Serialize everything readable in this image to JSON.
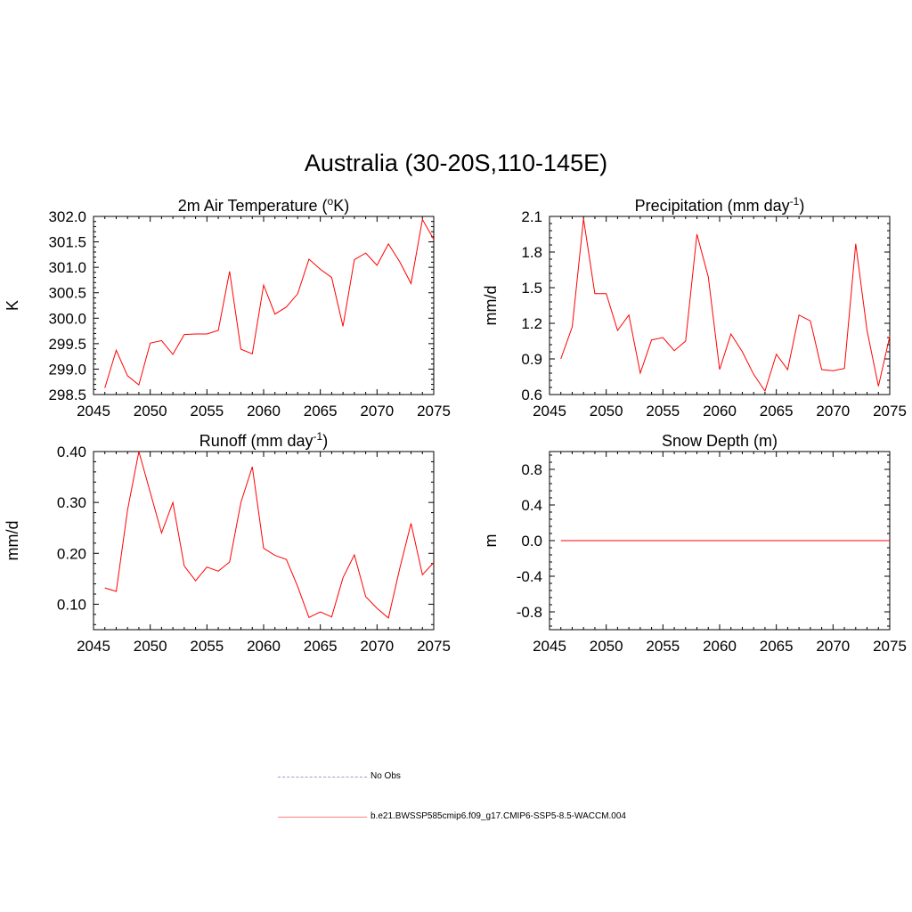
{
  "page": {
    "title": "Australia (30-20S,110-145E)"
  },
  "chart_data": [
    {
      "type": "line",
      "title": "2m Air Temperature (°K)",
      "title_base": "2m Air Temperature (",
      "title_sup": "o",
      "title_tail": "K)",
      "ylabel": "K",
      "xlim": [
        2045,
        2075
      ],
      "ylim": [
        298.5,
        302.0
      ],
      "xticks": [
        2045,
        2050,
        2055,
        2060,
        2065,
        2070,
        2075
      ],
      "yticks": [
        "298.5",
        "299.0",
        "299.5",
        "300.0",
        "300.5",
        "301.0",
        "301.5",
        "302.0"
      ],
      "series": [
        {
          "color": "#ff0000",
          "x": [
            2046,
            2047,
            2048,
            2049,
            2050,
            2051,
            2052,
            2053,
            2054,
            2055,
            2056,
            2057,
            2058,
            2059,
            2060,
            2061,
            2062,
            2063,
            2064,
            2065,
            2066,
            2067,
            2068,
            2069,
            2070,
            2071,
            2072,
            2073,
            2074,
            2075
          ],
          "y": [
            298.63,
            299.37,
            298.87,
            298.69,
            299.51,
            299.56,
            299.29,
            299.68,
            299.69,
            299.69,
            299.76,
            300.92,
            299.39,
            299.3,
            300.65,
            300.08,
            300.22,
            300.48,
            301.16,
            300.96,
            300.8,
            299.84,
            301.15,
            301.28,
            301.04,
            301.46,
            301.11,
            300.68,
            301.94,
            301.55
          ]
        }
      ]
    },
    {
      "type": "line",
      "title": "Precipitation (mm day-1)",
      "title_base": "Precipitation (mm day",
      "title_sup": "-1",
      "title_tail": ")",
      "ylabel": "mm/d",
      "xlim": [
        2045,
        2075
      ],
      "ylim": [
        0.6,
        2.1
      ],
      "xticks": [
        2045,
        2050,
        2055,
        2060,
        2065,
        2070,
        2075
      ],
      "yticks": [
        "0.6",
        "0.9",
        "1.2",
        "1.5",
        "1.8",
        "2.1"
      ],
      "series": [
        {
          "color": "#ff0000",
          "x": [
            2046,
            2047,
            2048,
            2049,
            2050,
            2051,
            2052,
            2053,
            2054,
            2055,
            2056,
            2057,
            2058,
            2059,
            2060,
            2061,
            2062,
            2063,
            2064,
            2065,
            2066,
            2067,
            2068,
            2069,
            2070,
            2071,
            2072,
            2073,
            2074,
            2075
          ],
          "y": [
            0.9,
            1.17,
            2.08,
            1.45,
            1.45,
            1.14,
            1.27,
            0.78,
            1.06,
            1.08,
            0.97,
            1.05,
            1.95,
            1.59,
            0.81,
            1.11,
            0.96,
            0.77,
            0.63,
            0.94,
            0.81,
            1.27,
            1.22,
            0.81,
            0.8,
            0.82,
            1.87,
            1.14,
            0.67,
            1.09
          ]
        }
      ]
    },
    {
      "type": "line",
      "title": "Runoff (mm day-1)",
      "title_base": "Runoff (mm day",
      "title_sup": "-1",
      "title_tail": ")",
      "ylabel": "mm/d",
      "xlim": [
        2045,
        2075
      ],
      "ylim": [
        0.05,
        0.4
      ],
      "xticks": [
        2045,
        2050,
        2055,
        2060,
        2065,
        2070,
        2075
      ],
      "yticks": [
        "0.10",
        "0.20",
        "0.30",
        "0.40"
      ],
      "series": [
        {
          "color": "#ff0000",
          "x": [
            2046,
            2047,
            2048,
            2049,
            2050,
            2051,
            2052,
            2053,
            2054,
            2055,
            2056,
            2057,
            2058,
            2059,
            2060,
            2061,
            2062,
            2063,
            2064,
            2065,
            2066,
            2067,
            2068,
            2069,
            2070,
            2071,
            2072,
            2073,
            2074,
            2075
          ],
          "y": [
            0.132,
            0.125,
            0.285,
            0.4,
            0.32,
            0.24,
            0.3,
            0.175,
            0.146,
            0.173,
            0.165,
            0.183,
            0.3,
            0.37,
            0.21,
            0.196,
            0.188,
            0.135,
            0.074,
            0.085,
            0.075,
            0.152,
            0.197,
            0.115,
            0.092,
            0.073,
            0.17,
            0.259,
            0.158,
            0.182
          ]
        }
      ]
    },
    {
      "type": "line",
      "title": "Snow Depth (m)",
      "title_base": "Snow Depth (m)",
      "title_sup": "",
      "title_tail": "",
      "ylabel": "m",
      "xlim": [
        2045,
        2075
      ],
      "ylim": [
        -1.0,
        1.0
      ],
      "xticks": [
        2045,
        2050,
        2055,
        2060,
        2065,
        2070,
        2075
      ],
      "yticks": [
        "-0.8",
        "-0.4",
        "0.0",
        "0.4",
        "0.8"
      ],
      "series": [
        {
          "color": "#ff0000",
          "x": [
            2046,
            2075
          ],
          "y": [
            0.0,
            0.0
          ]
        }
      ]
    }
  ],
  "legend": [
    {
      "label": "No Obs",
      "color": "#9999dd",
      "style": "dashed"
    },
    {
      "label": "b.e21.BWSSP585cmip6.f09_g17.CMIP6-SSP5-8.5-WACCM.004",
      "color": "#ff8080",
      "style": "solid"
    }
  ]
}
